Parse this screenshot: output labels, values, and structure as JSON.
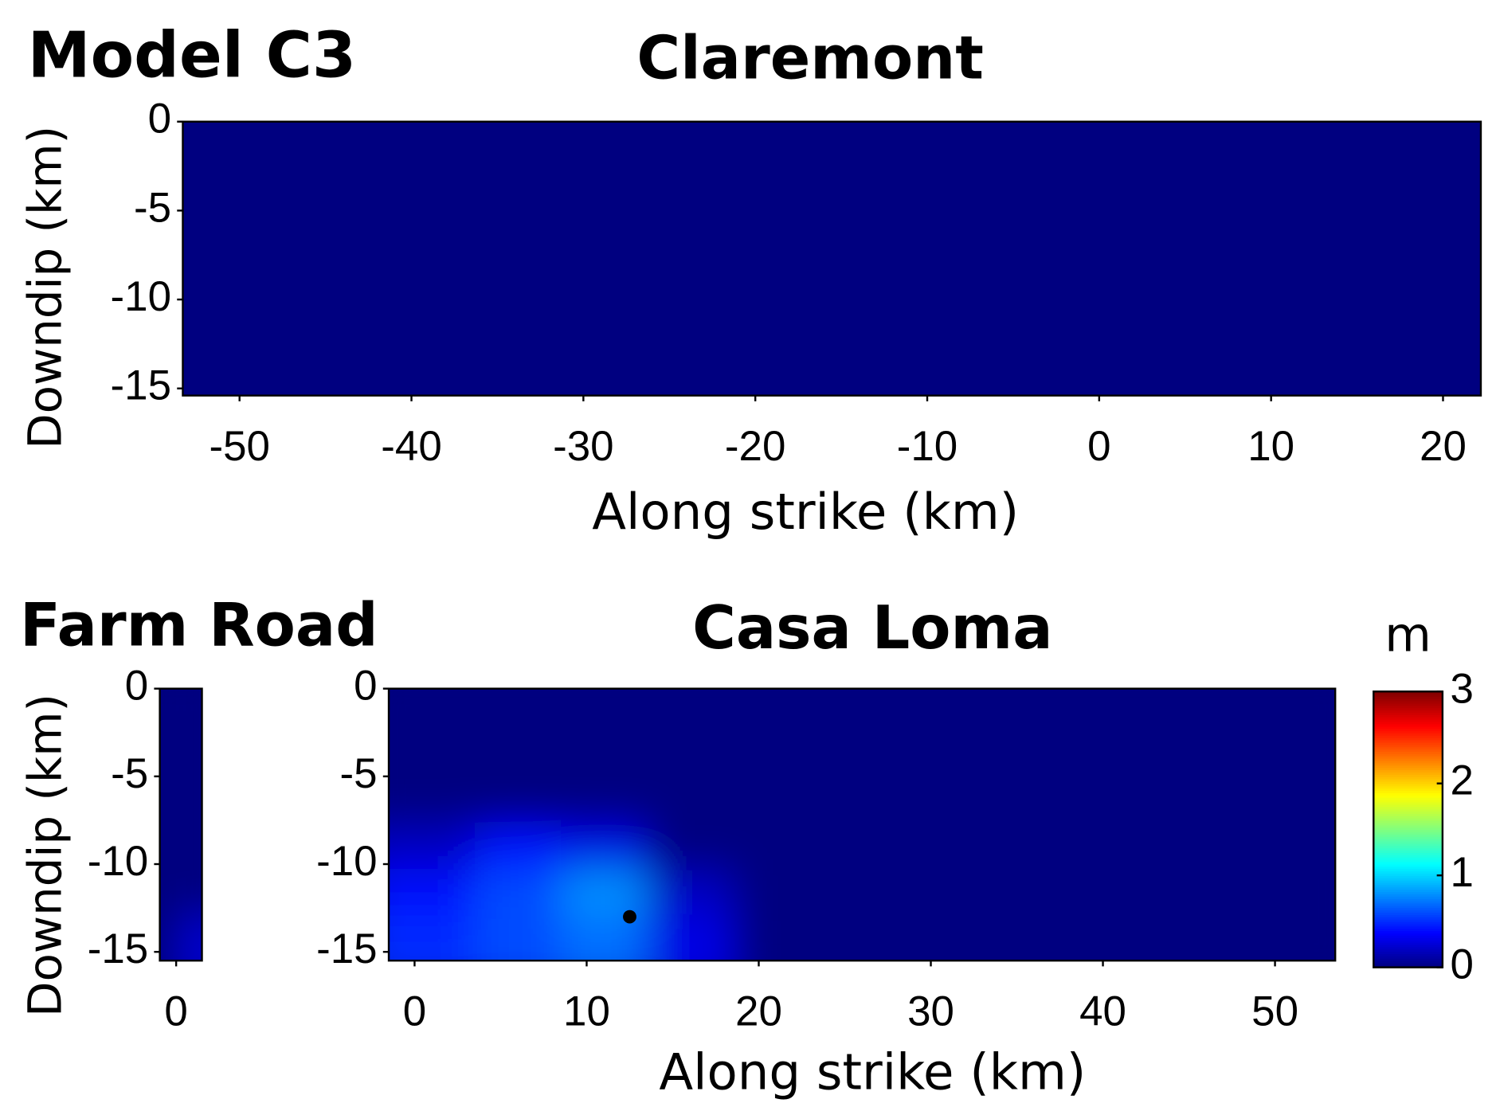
{
  "figure_label": "Model C3",
  "chart_data": [
    {
      "type": "heatmap",
      "title": "Claremont",
      "xlabel": "Along strike (km)",
      "ylabel": "Downdip (km)",
      "xlim": [
        -53.3,
        22.2
      ],
      "ylim": [
        -15.4,
        0
      ],
      "xticks": [
        -50,
        -40,
        -30,
        -20,
        -10,
        0,
        10,
        20
      ],
      "yticks": [
        0,
        -5,
        -10,
        -15
      ],
      "values": [
        [
          0
        ]
      ]
    },
    {
      "type": "heatmap",
      "title": "Farm Road",
      "ylabel": "Downdip (km)",
      "xlim": [
        -0.95,
        1.5
      ],
      "ylim": [
        -15.5,
        0
      ],
      "xticks": [
        0
      ],
      "yticks": [
        0,
        -5,
        -10,
        -15
      ],
      "values": [
        [
          0,
          0
        ],
        [
          0,
          0
        ],
        [
          0,
          0
        ],
        [
          0,
          0
        ],
        [
          0,
          0
        ],
        [
          0,
          0.25
        ]
      ]
    },
    {
      "type": "heatmap",
      "title": "Casa Loma",
      "xlabel": "Along strike (km)",
      "xlim": [
        -1.5,
        53.5
      ],
      "ylim": [
        -15.5,
        0
      ],
      "xticks": [
        0,
        10,
        20,
        30,
        40,
        50
      ],
      "yticks": [
        0,
        -5,
        -10,
        -15
      ],
      "values": [
        [
          0,
          0,
          0,
          0,
          0,
          0,
          0,
          0,
          0,
          0,
          0
        ],
        [
          0,
          0,
          0,
          0,
          0,
          0,
          0,
          0,
          0,
          0,
          0
        ],
        [
          0,
          0,
          0,
          0,
          0,
          0,
          0,
          0,
          0,
          0,
          0
        ],
        [
          0.2,
          0.4,
          0.3,
          0,
          0,
          0,
          0,
          0,
          0,
          0,
          0
        ],
        [
          0.4,
          0.6,
          0.8,
          0.2,
          0,
          0,
          0,
          0,
          0,
          0,
          0
        ],
        [
          0.5,
          0.6,
          0.7,
          0.3,
          0,
          0,
          0,
          0,
          0,
          0,
          0
        ]
      ],
      "markers": [
        {
          "x": 12.5,
          "y": -13.0
        }
      ],
      "colorbar": {
        "label": "m",
        "lim": [
          0,
          3
        ],
        "ticks": [
          0,
          1,
          2,
          3
        ],
        "colormap": "jet"
      }
    }
  ]
}
